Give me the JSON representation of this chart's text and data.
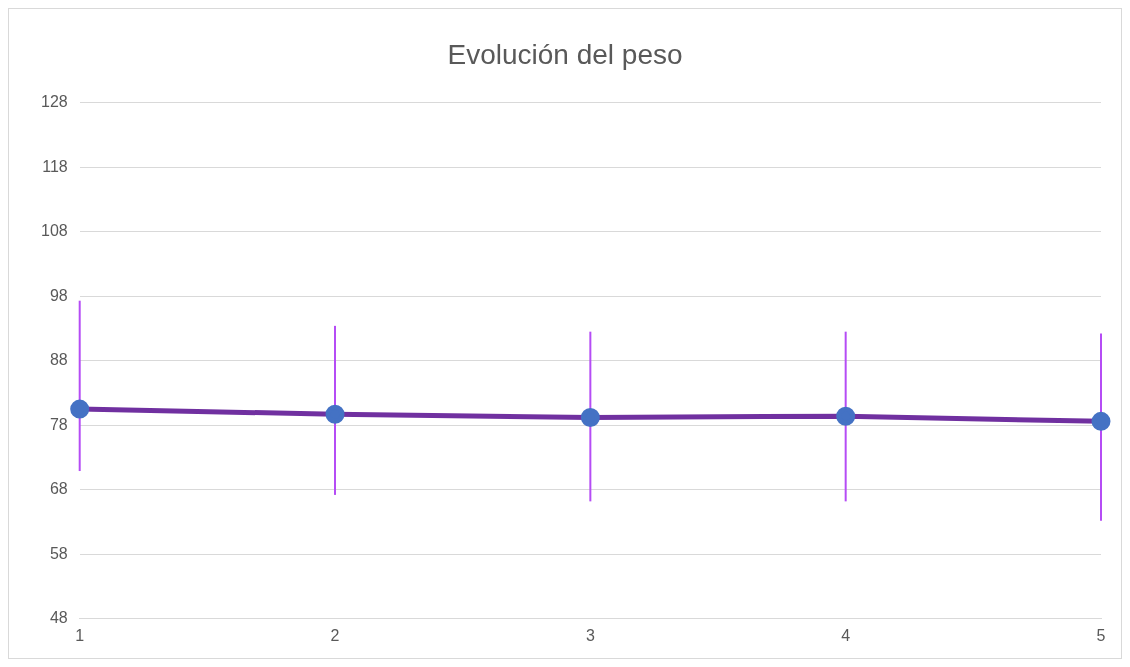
{
  "chart_data": {
    "type": "line",
    "title": "Evolución del peso",
    "categories": [
      "1",
      "2",
      "3",
      "4",
      "5"
    ],
    "series": [
      {
        "color": "#7030a0",
        "colors": [
          "#4472c4",
          "#4472c4",
          "#4472c4",
          "#4472c4",
          "#4472c4"
        ],
        "values": [
          80.5,
          79.7,
          79.2,
          79.4,
          78.6
        ],
        "errors": [
          [
            70.9,
            97.3
          ],
          [
            67.2,
            93.4
          ],
          [
            66.2,
            92.5
          ],
          [
            66.2,
            92.5
          ],
          [
            63.2,
            92.2
          ]
        ]
      }
    ],
    "ylim": [
      48,
      128
    ],
    "yticks": [
      48,
      58,
      68,
      78,
      88,
      98,
      108,
      118,
      128
    ],
    "grid": "y",
    "legend": false,
    "marker": "circle",
    "line_style": "solid"
  }
}
